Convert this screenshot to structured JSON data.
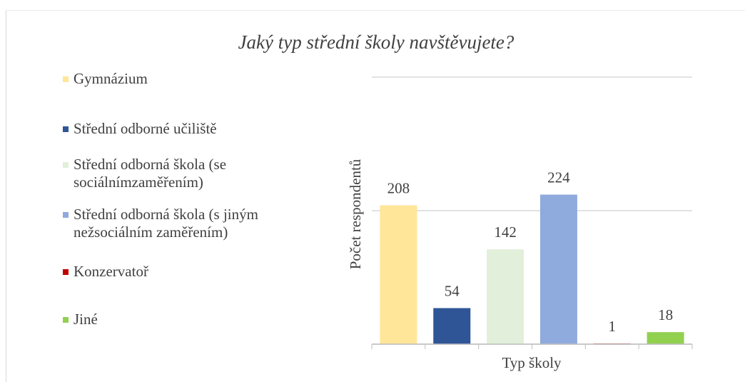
{
  "chart_data": {
    "type": "bar",
    "title": "Jaký typ střední školy navštěvujete?",
    "x_label": "Typ školy",
    "y_label": "Počet respondentů",
    "categories": [
      "Gymnázium",
      "Střední odborné učiliště",
      "Střední odborná škola (se sociálnímzaměřením)",
      "Střední odborná škola (s jiným nežsociálním zaměřením)",
      "Konzervatoř",
      "Jiné"
    ],
    "values": [
      208,
      54,
      142,
      224,
      1,
      18
    ],
    "colors": [
      "#ffe699",
      "#2f5597",
      "#e2efda",
      "#8faadc",
      "#c00000",
      "#92d050"
    ],
    "ylim": [
      0,
      400
    ],
    "yticks": [
      0,
      200,
      400
    ],
    "grid": true,
    "legend": "left"
  }
}
